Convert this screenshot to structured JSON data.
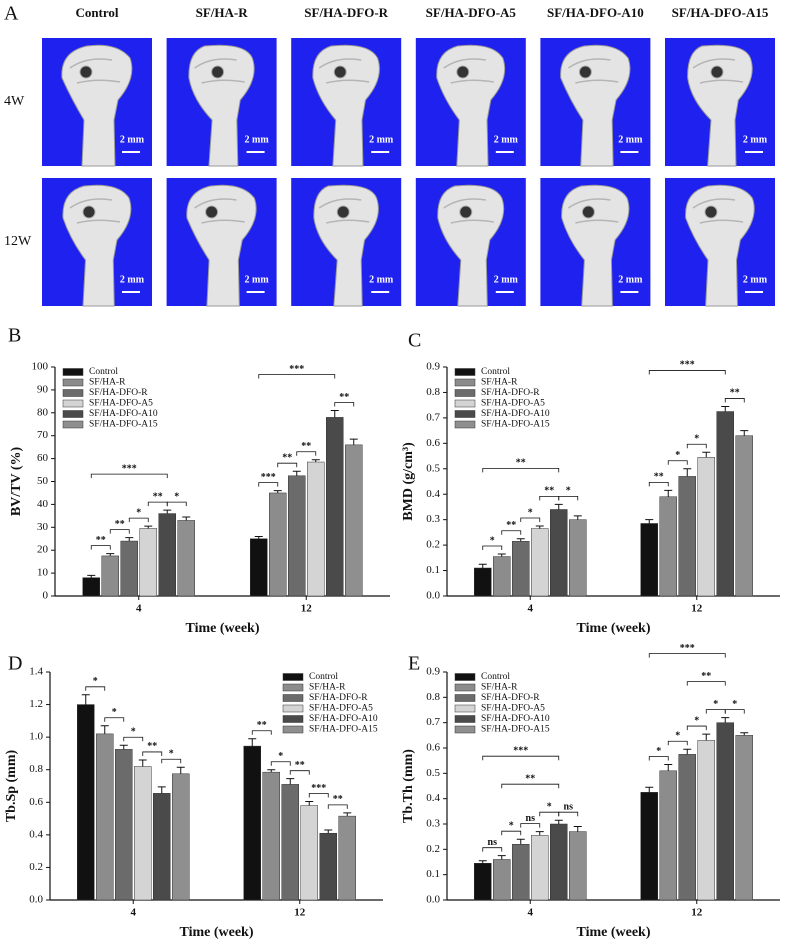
{
  "panel_a": {
    "label": "A",
    "columns": [
      "Control",
      "SF/HA-R",
      "SF/HA-DFO-R",
      "SF/HA-DFO-A5",
      "SF/HA-DFO-A10",
      "SF/HA-DFO-A15"
    ],
    "rows": [
      "4W",
      "12W"
    ],
    "scale_bar": "2 mm"
  },
  "chart_data": [
    {
      "type": "bar",
      "label": "B",
      "ylabel": "BV/TV (%)",
      "xlabel": "Time (week)",
      "categories": [
        "4",
        "12"
      ],
      "ylim": [
        0,
        100
      ],
      "yticks": [
        0,
        10,
        20,
        30,
        40,
        50,
        60,
        70,
        80,
        90,
        100
      ],
      "legend": "upper left",
      "series": [
        {
          "name": "Control",
          "color": "#111111",
          "values": [
            8,
            25
          ],
          "errors": [
            1,
            1
          ]
        },
        {
          "name": "SF/HA-R",
          "color": "#8c8c8c",
          "values": [
            17.5,
            45
          ],
          "errors": [
            1,
            1
          ]
        },
        {
          "name": "SF/HA-DFO-R",
          "color": "#6b6b6b",
          "values": [
            24,
            52.5
          ],
          "errors": [
            1.5,
            2
          ]
        },
        {
          "name": "SF/HA-DFO-A5",
          "color": "#d4d4d4",
          "values": [
            29.5,
            58.5
          ],
          "errors": [
            1,
            1
          ]
        },
        {
          "name": "SF/HA-DFO-A10",
          "color": "#4a4a4a",
          "values": [
            36,
            78
          ],
          "errors": [
            1.5,
            3
          ]
        },
        {
          "name": "SF/HA-DFO-A15",
          "color": "#8f8f8f",
          "values": [
            33,
            66
          ],
          "errors": [
            1.5,
            2.5
          ]
        }
      ],
      "annotations": [
        "**",
        "**",
        "*",
        "**",
        "*",
        "***",
        "***",
        "**",
        "**",
        "***",
        "**"
      ]
    },
    {
      "type": "bar",
      "label": "C",
      "ylabel": "BMD (g/cm³)",
      "xlabel": "Time (week)",
      "categories": [
        "4",
        "12"
      ],
      "ylim": [
        0,
        0.9
      ],
      "yticks": [
        {
          "value": 0,
          "label": "0.0"
        },
        0.1,
        0.2,
        0.3,
        0.4,
        0.5,
        0.6,
        0.7,
        0.8,
        0.9
      ],
      "legend": "upper left",
      "series": [
        {
          "name": "Control",
          "color": "#111111",
          "values": [
            0.11,
            0.285
          ],
          "errors": [
            0.015,
            0.015
          ]
        },
        {
          "name": "SF/HA-R",
          "color": "#8c8c8c",
          "values": [
            0.155,
            0.39
          ],
          "errors": [
            0.01,
            0.025
          ]
        },
        {
          "name": "SF/HA-DFO-R",
          "color": "#6b6b6b",
          "values": [
            0.215,
            0.47
          ],
          "errors": [
            0.01,
            0.03
          ]
        },
        {
          "name": "SF/HA-DFO-A5",
          "color": "#d4d4d4",
          "values": [
            0.265,
            0.545
          ],
          "errors": [
            0.01,
            0.02
          ]
        },
        {
          "name": "SF/HA-DFO-A10",
          "color": "#4a4a4a",
          "values": [
            0.34,
            0.725
          ],
          "errors": [
            0.02,
            0.02
          ]
        },
        {
          "name": "SF/HA-DFO-A15",
          "color": "#8f8f8f",
          "values": [
            0.3,
            0.63
          ],
          "errors": [
            0.015,
            0.02
          ]
        }
      ],
      "annotations": [
        "*",
        "**",
        "*",
        "**",
        "*",
        "**",
        "**",
        "*",
        "*",
        "***",
        "**"
      ]
    },
    {
      "type": "bar",
      "label": "D",
      "ylabel": "Tb.Sp (mm)",
      "xlabel": "Time (week)",
      "categories": [
        "4",
        "12"
      ],
      "ylim": [
        0,
        1.4
      ],
      "yticks": [
        {
          "value": 0,
          "label": "0.0"
        },
        0.2,
        0.4,
        0.6,
        0.8,
        {
          "value": 1,
          "label": "1.0"
        },
        1.2,
        1.4
      ],
      "legend": "upper right",
      "series": [
        {
          "name": "Control",
          "color": "#111111",
          "values": [
            1.2,
            0.945
          ],
          "errors": [
            0.06,
            0.045
          ]
        },
        {
          "name": "SF/HA-R",
          "color": "#8c8c8c",
          "values": [
            1.02,
            0.785
          ],
          "errors": [
            0.05,
            0.015
          ]
        },
        {
          "name": "SF/HA-DFO-R",
          "color": "#6b6b6b",
          "values": [
            0.925,
            0.71
          ],
          "errors": [
            0.025,
            0.035
          ]
        },
        {
          "name": "SF/HA-DFO-A5",
          "color": "#d4d4d4",
          "values": [
            0.82,
            0.58
          ],
          "errors": [
            0.04,
            0.025
          ]
        },
        {
          "name": "SF/HA-DFO-A10",
          "color": "#4a4a4a",
          "values": [
            0.655,
            0.41
          ],
          "errors": [
            0.04,
            0.02
          ]
        },
        {
          "name": "SF/HA-DFO-A15",
          "color": "#8f8f8f",
          "values": [
            0.775,
            0.515
          ],
          "errors": [
            0.04,
            0.02
          ]
        }
      ],
      "annotations": [
        "*",
        "*",
        "*",
        "**",
        "*",
        "**",
        "*",
        "**",
        "***",
        "**"
      ]
    },
    {
      "type": "bar",
      "label": "E",
      "ylabel": "Tb.Th (mm)",
      "xlabel": "Time (week)",
      "categories": [
        "4",
        "12"
      ],
      "ylim": [
        0,
        0.9
      ],
      "yticks": [
        {
          "value": 0,
          "label": "0.0"
        },
        0.1,
        0.2,
        0.3,
        0.4,
        0.5,
        0.6,
        0.7,
        0.8,
        0.9
      ],
      "legend": "upper left",
      "series": [
        {
          "name": "Control",
          "color": "#111111",
          "values": [
            0.145,
            0.425
          ],
          "errors": [
            0.01,
            0.02
          ]
        },
        {
          "name": "SF/HA-R",
          "color": "#8c8c8c",
          "values": [
            0.16,
            0.51
          ],
          "errors": [
            0.015,
            0.025
          ]
        },
        {
          "name": "SF/HA-DFO-R",
          "color": "#6b6b6b",
          "values": [
            0.22,
            0.575
          ],
          "errors": [
            0.02,
            0.02
          ]
        },
        {
          "name": "SF/HA-DFO-A5",
          "color": "#d4d4d4",
          "values": [
            0.255,
            0.63
          ],
          "errors": [
            0.015,
            0.025
          ]
        },
        {
          "name": "SF/HA-DFO-A10",
          "color": "#4a4a4a",
          "values": [
            0.3,
            0.7
          ],
          "errors": [
            0.015,
            0.02
          ]
        },
        {
          "name": "SF/HA-DFO-A15",
          "color": "#8f8f8f",
          "values": [
            0.27,
            0.65
          ],
          "errors": [
            0.02,
            0.01
          ]
        }
      ],
      "annotations": [
        "ns",
        "*",
        "ns",
        "*",
        "ns",
        "**",
        "***",
        "*",
        "*",
        "*",
        "*",
        "*",
        "**",
        "***"
      ]
    }
  ]
}
